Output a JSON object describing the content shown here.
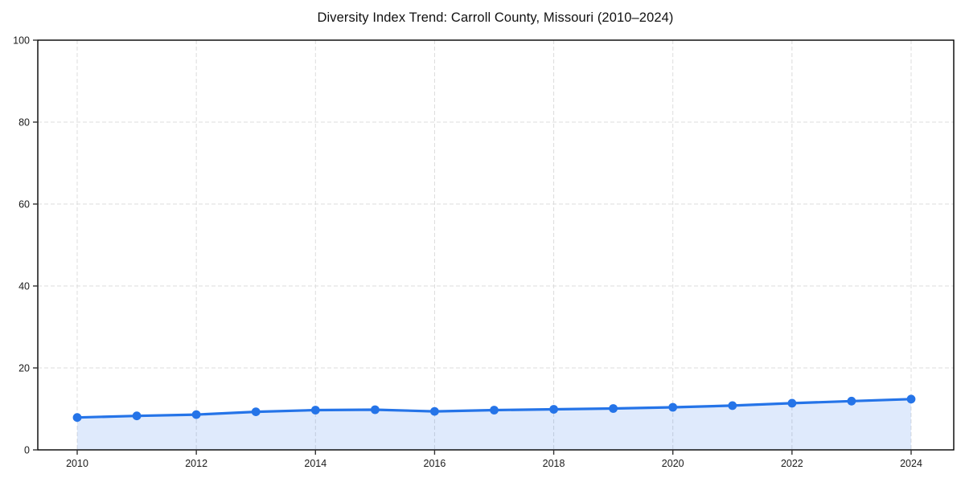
{
  "title": "Diversity Index Trend: Carroll County, Missouri (2010–2024)",
  "chart_data": {
    "type": "area",
    "title": "Diversity Index Trend: Carroll County, Missouri (2010–2024)",
    "x": [
      2010,
      2011,
      2012,
      2013,
      2014,
      2015,
      2016,
      2017,
      2018,
      2019,
      2020,
      2021,
      2022,
      2023,
      2024
    ],
    "values": [
      7.9,
      8.3,
      8.6,
      9.3,
      9.7,
      9.8,
      9.4,
      9.7,
      9.9,
      10.1,
      10.4,
      10.8,
      11.4,
      11.9,
      12.4
    ],
    "xlabel": "",
    "ylabel": "",
    "xticks": [
      2010,
      2012,
      2014,
      2016,
      2018,
      2020,
      2022,
      2024
    ],
    "yticks": [
      0,
      20,
      40,
      60,
      80,
      100
    ],
    "ylim": [
      0,
      100
    ],
    "grid": true,
    "grid_style": "dashed",
    "legend": "none",
    "marker": "circle",
    "colors": {
      "line": "#2574e8",
      "marker": "#2574e8",
      "fill": "#2574e8",
      "fill_opacity": 0.15,
      "grid": "#dcdcdc",
      "spine": "#000000",
      "tick": "#333333",
      "tick_label": "#1a1a1a",
      "title": "#111111",
      "background": "#ffffff"
    }
  }
}
